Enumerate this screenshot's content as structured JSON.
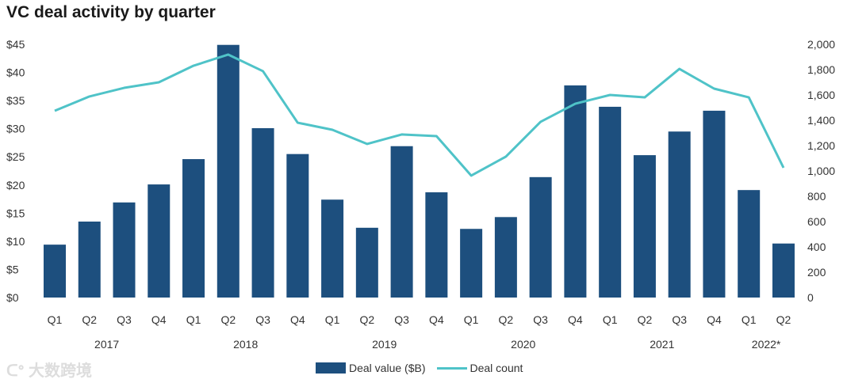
{
  "chart_data": {
    "type": "bar",
    "title": "VC deal activity by quarter",
    "categories": [
      "Q1",
      "Q2",
      "Q3",
      "Q4",
      "Q1",
      "Q2",
      "Q3",
      "Q4",
      "Q1",
      "Q2",
      "Q3",
      "Q4",
      "Q1",
      "Q2",
      "Q3",
      "Q4",
      "Q1",
      "Q2",
      "Q3",
      "Q4",
      "Q1",
      "Q2"
    ],
    "years": [
      {
        "label": "2017",
        "quarters": 4
      },
      {
        "label": "2018",
        "quarters": 4
      },
      {
        "label": "2019",
        "quarters": 4
      },
      {
        "label": "2020",
        "quarters": 4
      },
      {
        "label": "2021",
        "quarters": 4
      },
      {
        "label": "2022*",
        "quarters": 2
      }
    ],
    "series": [
      {
        "name": "Deal value ($B)",
        "type": "bar",
        "axis": "left",
        "color": "#1d4f7e",
        "values": [
          9.4,
          13.5,
          16.9,
          20.1,
          24.6,
          44.9,
          30.1,
          25.5,
          17.4,
          12.4,
          26.9,
          18.7,
          12.2,
          14.3,
          21.4,
          37.7,
          33.9,
          25.3,
          29.5,
          33.2,
          19.1,
          9.6
        ]
      },
      {
        "name": "Deal count",
        "type": "line",
        "axis": "right",
        "color": "#4fc3c8",
        "values": [
          1475,
          1588,
          1656,
          1700,
          1831,
          1919,
          1788,
          1381,
          1325,
          1213,
          1288,
          1275,
          963,
          1113,
          1388,
          1531,
          1600,
          1581,
          1806,
          1650,
          1581,
          1025
        ]
      }
    ],
    "left_axis": {
      "ylim": [
        0,
        45
      ],
      "ticks": [
        "$0",
        "$5",
        "$10",
        "$15",
        "$20",
        "$25",
        "$30",
        "$35",
        "$40",
        "$45"
      ]
    },
    "right_axis": {
      "ylim": [
        0,
        2000
      ],
      "ticks": [
        "0",
        "200",
        "400",
        "600",
        "800",
        "1,000",
        "1,200",
        "1,400",
        "1,600",
        "1,800",
        "2,000"
      ]
    },
    "grid": false,
    "legend_position": "bottom"
  },
  "watermark": "大数跨境"
}
